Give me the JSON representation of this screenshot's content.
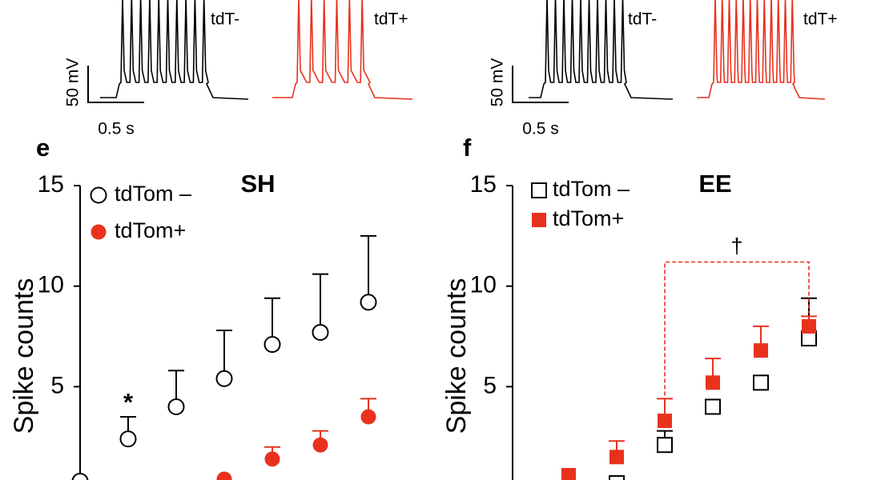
{
  "traces": [
    {
      "label": "tdT-"
    },
    {
      "label": "tdT+"
    },
    {
      "label": "tdT-"
    },
    {
      "label": "tdT+"
    }
  ],
  "scale_bars": [
    {
      "voltage": "50 mV",
      "time": "0.5 s"
    },
    {
      "voltage": "50 mV",
      "time": "0.5 s"
    }
  ],
  "chart_data": [
    {
      "type": "scatter",
      "panel": "e",
      "title": "SH",
      "y_label": "Spike counts",
      "categories": [
        null,
        null,
        null,
        null,
        null,
        null,
        null
      ],
      "ylim": [
        0,
        15
      ],
      "yticks": [
        5,
        10,
        15
      ],
      "annotations": [
        {
          "text": "*",
          "category": 1
        }
      ],
      "series": [
        {
          "name": "tdTom –",
          "color": "#000000",
          "marker": "open-circle",
          "values": [
            0.3,
            2.4,
            4.0,
            5.4,
            7.1,
            7.7,
            9.2
          ],
          "errors": [
            null,
            1.1,
            1.8,
            2.4,
            2.3,
            2.9,
            3.3
          ]
        },
        {
          "name": "tdTom+",
          "color": "#e8321e",
          "marker": "filled-circle",
          "values": [
            null,
            null,
            null,
            0.4,
            1.4,
            2.1,
            3.5
          ],
          "errors": [
            null,
            null,
            null,
            null,
            0.6,
            0.7,
            0.9
          ]
        }
      ]
    },
    {
      "type": "scatter",
      "panel": "f",
      "title": "EE",
      "y_label": "Spike counts",
      "categories": [
        null,
        null,
        null,
        null,
        null,
        null,
        null
      ],
      "ylim": [
        0,
        15
      ],
      "yticks": [
        5,
        10,
        15
      ],
      "annotations": [
        {
          "text": "†",
          "from": 3,
          "to": 6,
          "level": 11.2
        }
      ],
      "series": [
        {
          "name": "tdTom –",
          "color": "#000000",
          "marker": "open-square",
          "values": [
            null,
            null,
            0.2,
            2.1,
            4.0,
            5.2,
            7.4
          ],
          "errors": [
            null,
            null,
            null,
            0.7,
            null,
            null,
            2.0
          ]
        },
        {
          "name": "tdTom+",
          "color": "#e8321e",
          "marker": "filled-square",
          "values": [
            null,
            0.6,
            1.5,
            3.3,
            5.2,
            6.8,
            8.0
          ],
          "errors": [
            null,
            null,
            0.8,
            1.1,
            1.2,
            1.2,
            0.5
          ]
        }
      ]
    }
  ]
}
